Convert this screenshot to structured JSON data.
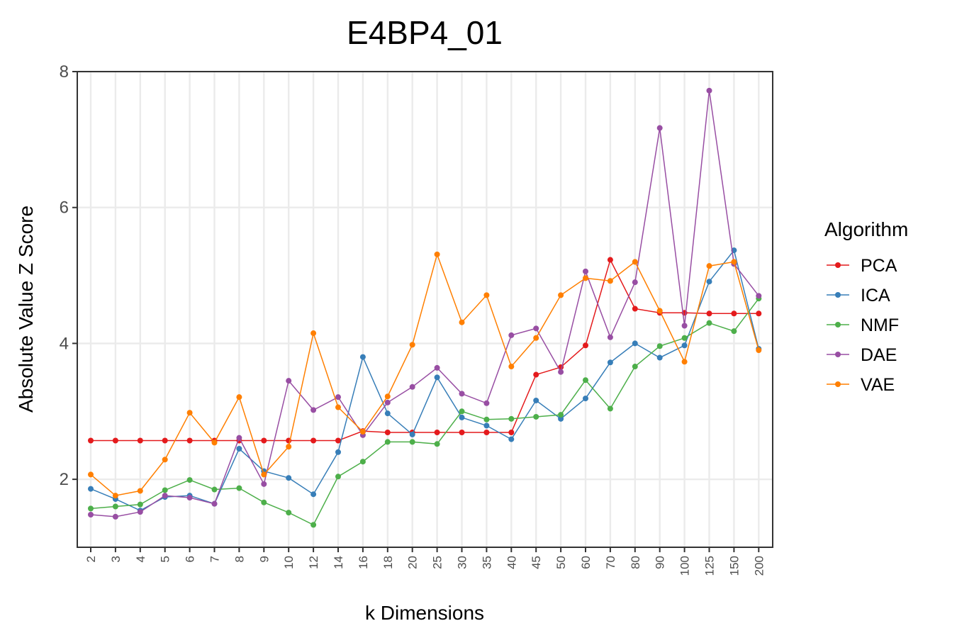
{
  "chart_data": {
    "type": "line",
    "title": "E4BP4_01",
    "xlabel": "k Dimensions",
    "ylabel": "Absolute Value Z Score",
    "categories": [
      "2",
      "3",
      "4",
      "5",
      "6",
      "7",
      "8",
      "9",
      "10",
      "12",
      "14",
      "16",
      "18",
      "20",
      "25",
      "30",
      "35",
      "40",
      "45",
      "50",
      "60",
      "70",
      "80",
      "90",
      "100",
      "125",
      "150",
      "200"
    ],
    "ylim": [
      1.0,
      8.0
    ],
    "yticks": [
      2,
      4,
      6,
      8
    ],
    "grid": true,
    "legend": {
      "title": "Algorithm",
      "position": "right"
    },
    "series": [
      {
        "name": "PCA",
        "color": "#e41a1c",
        "values": [
          2.57,
          2.57,
          2.57,
          2.57,
          2.57,
          2.57,
          2.57,
          2.57,
          2.57,
          2.57,
          2.57,
          2.71,
          2.69,
          2.69,
          2.69,
          2.69,
          2.69,
          2.69,
          3.54,
          3.65,
          3.97,
          5.23,
          4.51,
          4.45,
          4.45,
          4.44,
          4.44,
          4.44
        ]
      },
      {
        "name": "ICA",
        "color": "#377eb8",
        "values": [
          1.86,
          1.71,
          1.54,
          1.74,
          1.76,
          1.64,
          2.45,
          2.12,
          2.02,
          1.78,
          2.4,
          3.8,
          2.97,
          2.66,
          3.5,
          2.91,
          2.79,
          2.59,
          3.16,
          2.89,
          3.19,
          3.72,
          4.0,
          3.79,
          3.97,
          4.91,
          5.37,
          3.92
        ]
      },
      {
        "name": "NMF",
        "color": "#4daf4a",
        "values": [
          1.57,
          1.6,
          1.63,
          1.84,
          1.99,
          1.85,
          1.87,
          1.66,
          1.51,
          1.33,
          2.04,
          2.26,
          2.55,
          2.55,
          2.52,
          3.0,
          2.88,
          2.89,
          2.92,
          2.95,
          3.46,
          3.04,
          3.66,
          3.96,
          4.08,
          4.3,
          4.18,
          4.66
        ]
      },
      {
        "name": "DAE",
        "color": "#984ea3",
        "values": [
          1.48,
          1.45,
          1.52,
          1.76,
          1.73,
          1.64,
          2.61,
          1.93,
          3.45,
          3.02,
          3.21,
          2.65,
          3.13,
          3.36,
          3.64,
          3.26,
          3.12,
          4.12,
          4.22,
          3.58,
          5.06,
          4.09,
          4.9,
          7.17,
          4.26,
          7.72,
          5.17,
          4.7
        ]
      },
      {
        "name": "VAE",
        "color": "#ff7f00",
        "values": [
          2.07,
          1.76,
          1.83,
          2.29,
          2.98,
          2.54,
          3.21,
          2.07,
          2.48,
          4.15,
          3.06,
          2.7,
          3.22,
          3.98,
          5.31,
          4.31,
          4.71,
          3.66,
          4.08,
          4.71,
          4.96,
          4.92,
          5.2,
          4.48,
          3.73,
          5.14,
          5.2,
          3.9
        ]
      }
    ]
  }
}
